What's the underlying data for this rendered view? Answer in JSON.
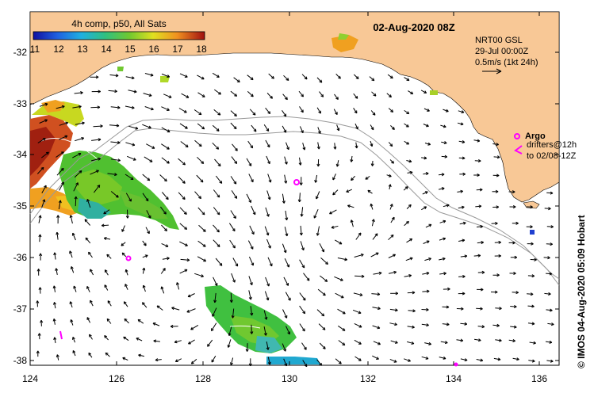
{
  "title": "02-Aug-2020 08Z",
  "colorbar": {
    "label": "4h comp, p50, All Sats",
    "ticks": [
      "11",
      "12",
      "13",
      "14",
      "15",
      "16",
      "17",
      "18"
    ]
  },
  "current_legend": {
    "line1": "NRT00 GSL",
    "line2": "29-Jul 00:00Z",
    "line3": "0.5m/s (1kt 24h)"
  },
  "argo_legend": {
    "label": "Argo",
    "line1": "drifters@12h",
    "line2": "to 02/08-12Z"
  },
  "credit": "© IMOS 04-Aug-2020 05:09 Hobart",
  "axes": {
    "x_ticks": [
      "124",
      "126",
      "128",
      "130",
      "132",
      "134",
      "136"
    ],
    "y_ticks": [
      "-32",
      "-33",
      "-34",
      "-35",
      "-36",
      "-37",
      "-38"
    ]
  },
  "colors": {
    "land": "#f8c896",
    "ocean": "#ffffff",
    "argo": "#ff00ff"
  }
}
